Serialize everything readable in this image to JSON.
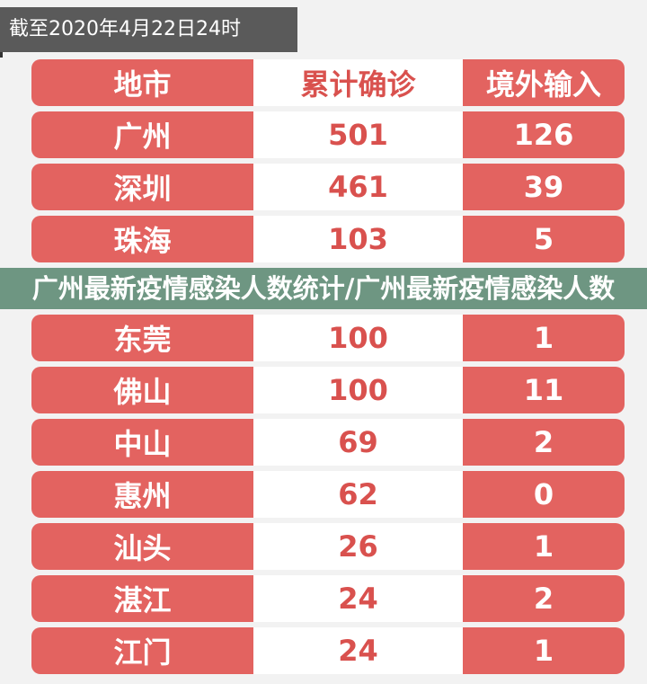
{
  "timestamp": "截至2020年4月22日24时",
  "headers": [
    "地市",
    "累计确诊",
    "境外输入"
  ],
  "rows": [
    {
      "city": "广州",
      "confirmed": "501",
      "imported": "126"
    },
    {
      "city": "深圳",
      "confirmed": "461",
      "imported": "39"
    },
    {
      "city": "珠海",
      "confirmed": "103",
      "imported": "5"
    },
    {
      "city": "东莞",
      "confirmed": "100",
      "imported": "1"
    },
    {
      "city": "佛山",
      "confirmed": "100",
      "imported": "11"
    },
    {
      "city": "中山",
      "confirmed": "69",
      "imported": "2"
    },
    {
      "city": "惠州",
      "confirmed": "62",
      "imported": "0"
    },
    {
      "city": "汕头",
      "confirmed": "26",
      "imported": "1"
    },
    {
      "city": "湛江",
      "confirmed": "24",
      "imported": "2"
    },
    {
      "city": "江门",
      "confirmed": "24",
      "imported": "1"
    }
  ],
  "overlay_title": "广州最新疫情感染人数统计/广州最新疫情感染人数",
  "colors": {
    "red": "#e36360",
    "text_red": "#d9514e",
    "overlay": "#6e9682"
  }
}
